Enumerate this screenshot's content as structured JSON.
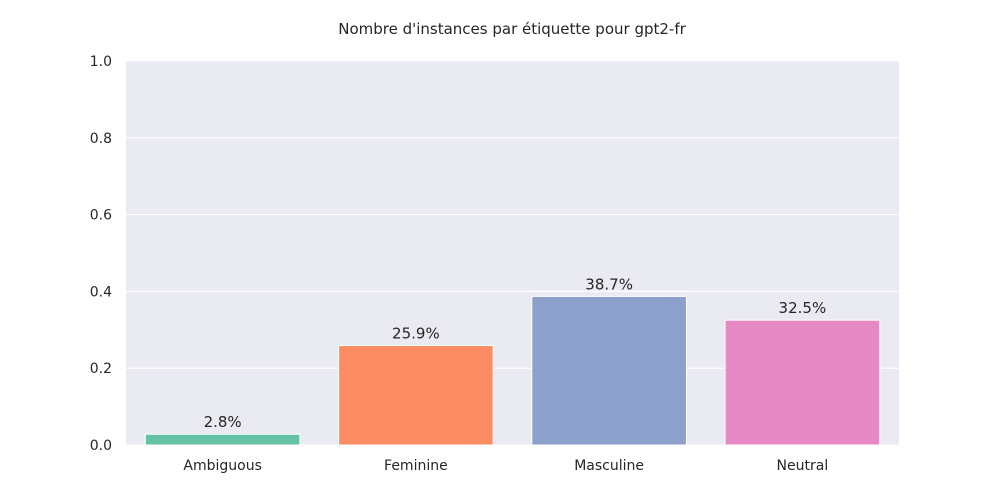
{
  "chart_data": {
    "type": "bar",
    "title": "Nombre d'instances par étiquette pour gpt2-fr",
    "xlabel": "",
    "ylabel": "",
    "categories": [
      "Ambiguous",
      "Feminine",
      "Masculine",
      "Neutral"
    ],
    "values": [
      0.028,
      0.259,
      0.387,
      0.325
    ],
    "data_labels": [
      "2.8%",
      "25.9%",
      "38.7%",
      "32.5%"
    ],
    "ylim": [
      0,
      1.0
    ],
    "yticks": [
      0.0,
      0.2,
      0.4,
      0.6,
      0.8,
      1.0
    ],
    "ytick_labels": [
      "0.0",
      "0.2",
      "0.4",
      "0.6",
      "0.8",
      "1.0"
    ],
    "grid": true,
    "legend": "none",
    "colors": [
      "#66c2a5",
      "#fc8d62",
      "#8da0cb",
      "#e78ac3"
    ],
    "plot_background": "#eaeaf2",
    "grid_color": "#ffffff",
    "text_color": "#262626"
  }
}
